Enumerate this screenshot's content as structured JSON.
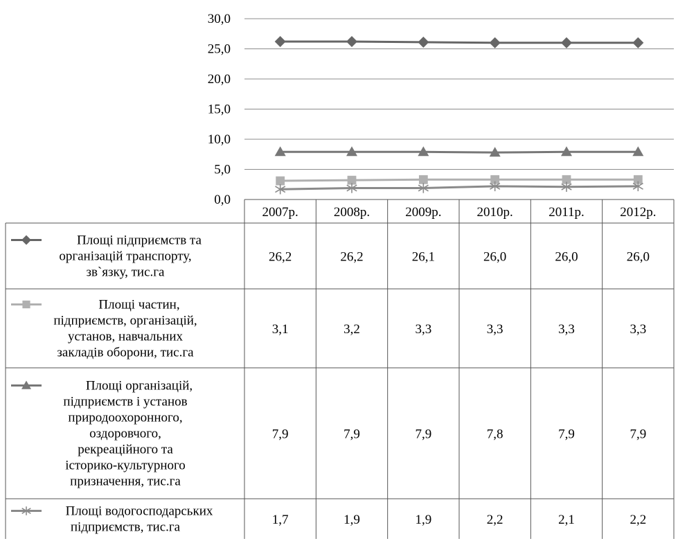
{
  "chart_data": {
    "type": "line",
    "categories": [
      "2007р.",
      "2008р.",
      "2009р.",
      "2010р.",
      "2011р.",
      "2012р."
    ],
    "ylim": [
      0,
      30
    ],
    "yticks": [
      "0,0",
      "5,0",
      "10,0",
      "15,0",
      "20,0",
      "25,0",
      "30,0"
    ],
    "ytick_values": [
      0,
      5,
      10,
      15,
      20,
      25,
      30
    ],
    "grid": true,
    "legend": "data-table",
    "series": [
      {
        "name": "Площі підприємств та організацій транспорту, зв`язку, тис.га",
        "label_lines": [
          "Площі підприємств та",
          "організацій транспорту,",
          "зв`язку, тис.га"
        ],
        "marker": "diamond",
        "color": "#666666",
        "values": [
          26.2,
          26.2,
          26.1,
          26.0,
          26.0,
          26.0
        ],
        "labels": [
          "26,2",
          "26,2",
          "26,1",
          "26,0",
          "26,0",
          "26,0"
        ]
      },
      {
        "name": "Площі частин, підприємств, організацій, установ, навчальних закладів оборони, тис.га",
        "label_lines": [
          "Площі частин,",
          "підприємств, організацій,",
          "установ,  навчальних",
          "закладів оборони, тис.га"
        ],
        "marker": "square",
        "color": "#b0b0b0",
        "values": [
          3.1,
          3.2,
          3.3,
          3.3,
          3.3,
          3.3
        ],
        "labels": [
          "3,1",
          "3,2",
          "3,3",
          "3,3",
          "3,3",
          "3,3"
        ]
      },
      {
        "name": "Площі організацій, підприємств і установ природоохоронного, оздоровчого, рекреаційного та історико-культурного призначення, тис.га",
        "label_lines": [
          "Площі організацій,",
          "підприємств і установ",
          "природоохоронного,",
          "оздоровчого,",
          "рекреаційного та",
          "історико-культурного",
          "призначення, тис.га"
        ],
        "marker": "triangle",
        "color": "#777777",
        "values": [
          7.9,
          7.9,
          7.9,
          7.8,
          7.9,
          7.9
        ],
        "labels": [
          "7,9",
          "7,9",
          "7,9",
          "7,8",
          "7,9",
          "7,9"
        ]
      },
      {
        "name": "Площі водогосподарських підприємств, тис.га",
        "label_lines": [
          "Площі водогосподарських",
          "підприємств, тис.га"
        ],
        "marker": "star",
        "color": "#8a8a8a",
        "values": [
          1.7,
          1.9,
          1.9,
          2.2,
          2.1,
          2.2
        ],
        "labels": [
          "1,7",
          "1,9",
          "1,9",
          "2,2",
          "2,1",
          "2,2"
        ]
      }
    ]
  }
}
